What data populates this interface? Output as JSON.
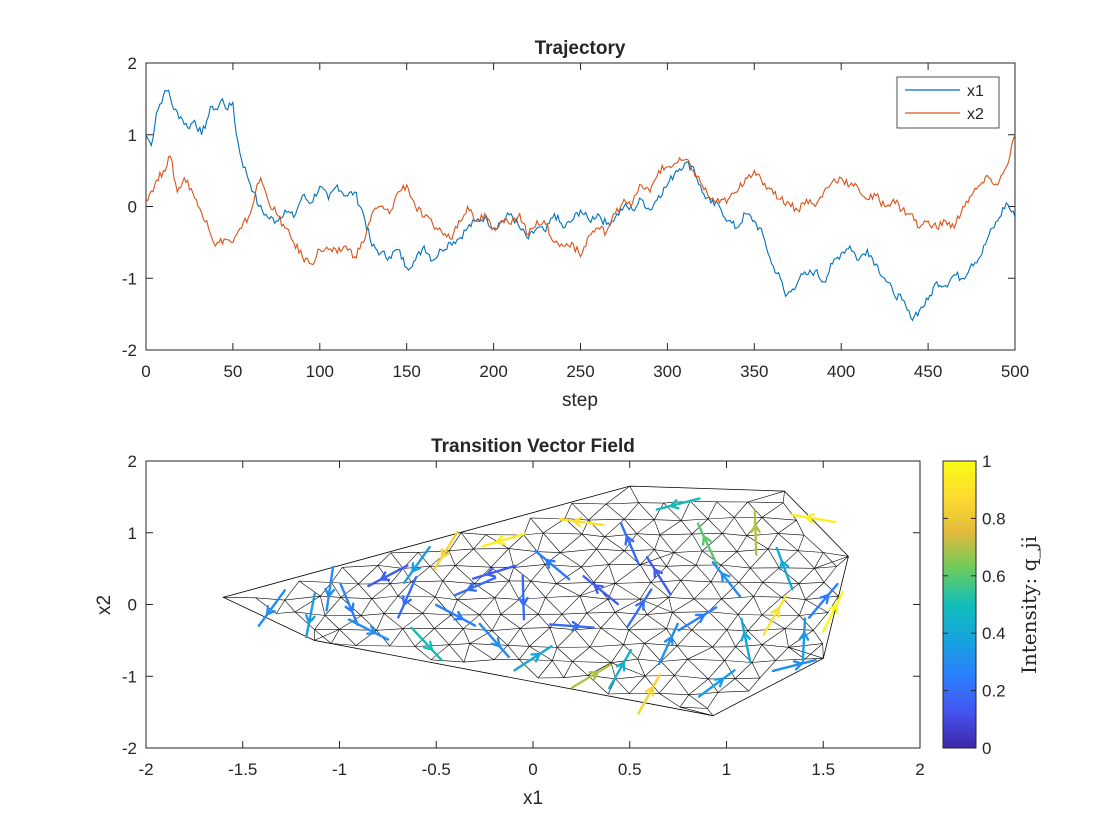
{
  "chart_data": [
    {
      "type": "line",
      "title": "Trajectory",
      "xlabel": "step",
      "ylabel": "",
      "xlim": [
        0,
        500
      ],
      "ylim": [
        -2,
        2
      ],
      "xticks": [
        0,
        50,
        100,
        150,
        200,
        250,
        300,
        350,
        400,
        450,
        500
      ],
      "yticks": [
        -2,
        -1,
        0,
        1,
        2
      ],
      "legend_position": "top-right",
      "grid": false,
      "series": [
        {
          "name": "x1",
          "color": "#0072BD",
          "points": [
            [
              0,
              1.0
            ],
            [
              3,
              0.85
            ],
            [
              6,
              1.3
            ],
            [
              10,
              1.55
            ],
            [
              13,
              1.62
            ],
            [
              16,
              1.35
            ],
            [
              20,
              1.25
            ],
            [
              24,
              1.1
            ],
            [
              28,
              1.2
            ],
            [
              32,
              1.0
            ],
            [
              35,
              1.2
            ],
            [
              38,
              1.4
            ],
            [
              41,
              1.35
            ],
            [
              44,
              1.5
            ],
            [
              47,
              1.35
            ],
            [
              50,
              1.45
            ],
            [
              52,
              1.0
            ],
            [
              55,
              0.65
            ],
            [
              58,
              0.45
            ],
            [
              62,
              0.2
            ],
            [
              65,
              0.0
            ],
            [
              70,
              -0.15
            ],
            [
              75,
              -0.2
            ],
            [
              80,
              -0.05
            ],
            [
              85,
              -0.15
            ],
            [
              90,
              0.15
            ],
            [
              95,
              0.05
            ],
            [
              100,
              0.28
            ],
            [
              105,
              0.1
            ],
            [
              110,
              0.3
            ],
            [
              115,
              0.15
            ],
            [
              120,
              0.2
            ],
            [
              125,
              -0.1
            ],
            [
              130,
              -0.55
            ],
            [
              135,
              -0.65
            ],
            [
              140,
              -0.7
            ],
            [
              145,
              -0.6
            ],
            [
              150,
              -0.85
            ],
            [
              155,
              -0.75
            ],
            [
              160,
              -0.55
            ],
            [
              165,
              -0.75
            ],
            [
              170,
              -0.6
            ],
            [
              175,
              -0.5
            ],
            [
              180,
              -0.45
            ],
            [
              185,
              -0.3
            ],
            [
              190,
              -0.2
            ],
            [
              195,
              -0.15
            ],
            [
              200,
              -0.3
            ],
            [
              205,
              -0.2
            ],
            [
              210,
              -0.1
            ],
            [
              215,
              -0.3
            ],
            [
              220,
              -0.45
            ],
            [
              225,
              -0.3
            ],
            [
              230,
              -0.35
            ],
            [
              235,
              -0.1
            ],
            [
              240,
              -0.3
            ],
            [
              245,
              -0.2
            ],
            [
              250,
              -0.05
            ],
            [
              255,
              -0.2
            ],
            [
              260,
              -0.1
            ],
            [
              265,
              -0.25
            ],
            [
              270,
              -0.15
            ],
            [
              275,
              0.0
            ],
            [
              280,
              -0.05
            ],
            [
              285,
              0.1
            ],
            [
              290,
              -0.05
            ],
            [
              295,
              0.15
            ],
            [
              300,
              0.3
            ],
            [
              305,
              0.5
            ],
            [
              310,
              0.6
            ],
            [
              315,
              0.55
            ],
            [
              320,
              0.2
            ],
            [
              325,
              0.05
            ],
            [
              330,
              0.0
            ],
            [
              335,
              -0.2
            ],
            [
              340,
              -0.3
            ],
            [
              345,
              -0.1
            ],
            [
              350,
              -0.2
            ],
            [
              355,
              -0.4
            ],
            [
              360,
              -0.8
            ],
            [
              365,
              -1.0
            ],
            [
              368,
              -1.25
            ],
            [
              372,
              -1.15
            ],
            [
              376,
              -1.0
            ],
            [
              380,
              -0.95
            ],
            [
              385,
              -0.9
            ],
            [
              390,
              -1.05
            ],
            [
              395,
              -0.8
            ],
            [
              400,
              -0.65
            ],
            [
              405,
              -0.55
            ],
            [
              410,
              -0.75
            ],
            [
              415,
              -0.6
            ],
            [
              420,
              -0.8
            ],
            [
              425,
              -1.0
            ],
            [
              430,
              -1.2
            ],
            [
              435,
              -1.3
            ],
            [
              440,
              -1.55
            ],
            [
              445,
              -1.45
            ],
            [
              450,
              -1.3
            ],
            [
              455,
              -1.05
            ],
            [
              460,
              -1.1
            ],
            [
              465,
              -0.95
            ],
            [
              470,
              -1.0
            ],
            [
              475,
              -0.8
            ],
            [
              480,
              -0.7
            ],
            [
              485,
              -0.4
            ],
            [
              490,
              -0.2
            ],
            [
              495,
              0.05
            ],
            [
              500,
              -0.15
            ]
          ]
        },
        {
          "name": "x2",
          "color": "#D95319",
          "points": [
            [
              0,
              0.1
            ],
            [
              5,
              0.3
            ],
            [
              10,
              0.5
            ],
            [
              14,
              0.7
            ],
            [
              18,
              0.2
            ],
            [
              22,
              0.4
            ],
            [
              26,
              0.25
            ],
            [
              30,
              0.0
            ],
            [
              35,
              -0.2
            ],
            [
              40,
              -0.55
            ],
            [
              45,
              -0.45
            ],
            [
              50,
              -0.5
            ],
            [
              55,
              -0.3
            ],
            [
              60,
              -0.1
            ],
            [
              63,
              0.2
            ],
            [
              66,
              0.4
            ],
            [
              70,
              0.1
            ],
            [
              75,
              -0.1
            ],
            [
              80,
              -0.3
            ],
            [
              85,
              -0.5
            ],
            [
              90,
              -0.7
            ],
            [
              95,
              -0.8
            ],
            [
              100,
              -0.6
            ],
            [
              105,
              -0.6
            ],
            [
              110,
              -0.65
            ],
            [
              115,
              -0.55
            ],
            [
              120,
              -0.7
            ],
            [
              125,
              -0.5
            ],
            [
              130,
              -0.1
            ],
            [
              135,
              0.0
            ],
            [
              140,
              -0.1
            ],
            [
              145,
              0.2
            ],
            [
              150,
              0.3
            ],
            [
              155,
              0.0
            ],
            [
              160,
              -0.15
            ],
            [
              165,
              -0.25
            ],
            [
              170,
              -0.35
            ],
            [
              175,
              -0.45
            ],
            [
              180,
              -0.2
            ],
            [
              185,
              0.0
            ],
            [
              190,
              -0.2
            ],
            [
              195,
              -0.1
            ],
            [
              200,
              -0.3
            ],
            [
              205,
              -0.2
            ],
            [
              210,
              -0.25
            ],
            [
              215,
              -0.1
            ],
            [
              220,
              -0.4
            ],
            [
              225,
              -0.2
            ],
            [
              230,
              -0.25
            ],
            [
              235,
              -0.5
            ],
            [
              240,
              -0.55
            ],
            [
              245,
              -0.5
            ],
            [
              250,
              -0.7
            ],
            [
              255,
              -0.4
            ],
            [
              260,
              -0.3
            ],
            [
              265,
              -0.35
            ],
            [
              270,
              -0.1
            ],
            [
              275,
              0.1
            ],
            [
              280,
              0.05
            ],
            [
              285,
              0.3
            ],
            [
              290,
              0.2
            ],
            [
              295,
              0.5
            ],
            [
              300,
              0.55
            ],
            [
              305,
              0.6
            ],
            [
              310,
              0.65
            ],
            [
              315,
              0.5
            ],
            [
              320,
              0.3
            ],
            [
              325,
              0.1
            ],
            [
              330,
              0.05
            ],
            [
              335,
              0.1
            ],
            [
              340,
              0.2
            ],
            [
              345,
              0.4
            ],
            [
              350,
              0.5
            ],
            [
              355,
              0.3
            ],
            [
              360,
              0.25
            ],
            [
              365,
              0.1
            ],
            [
              370,
              0.05
            ],
            [
              375,
              -0.05
            ],
            [
              380,
              0.1
            ],
            [
              385,
              0.0
            ],
            [
              390,
              0.2
            ],
            [
              395,
              0.35
            ],
            [
              400,
              0.4
            ],
            [
              405,
              0.3
            ],
            [
              410,
              0.25
            ],
            [
              415,
              0.1
            ],
            [
              420,
              0.15
            ],
            [
              425,
              0.0
            ],
            [
              430,
              0.1
            ],
            [
              435,
              -0.05
            ],
            [
              440,
              -0.1
            ],
            [
              445,
              -0.3
            ],
            [
              450,
              -0.2
            ],
            [
              455,
              -0.3
            ],
            [
              460,
              -0.2
            ],
            [
              465,
              -0.3
            ],
            [
              470,
              0.0
            ],
            [
              475,
              0.15
            ],
            [
              480,
              0.3
            ],
            [
              485,
              0.4
            ],
            [
              490,
              0.3
            ],
            [
              495,
              0.55
            ],
            [
              500,
              1.0
            ]
          ]
        }
      ]
    },
    {
      "type": "vector-field",
      "title": "Transition Vector Field",
      "xlabel": "x1",
      "ylabel": "x2",
      "xlim": [
        -2,
        2
      ],
      "ylim": [
        -2,
        2
      ],
      "xticks": [
        -2,
        -1.5,
        -1,
        -0.5,
        0,
        0.5,
        1,
        1.5,
        2
      ],
      "yticks": [
        -2,
        -1,
        0,
        1,
        2
      ],
      "colorbar": {
        "label": "Intensity: q_ji",
        "ticks": [
          0,
          0.2,
          0.4,
          0.6,
          0.8,
          1
        ],
        "range": [
          0,
          1
        ],
        "colormap": [
          "#3E26A8",
          "#4454F1",
          "#2B7EFE",
          "#16A3DE",
          "#12BEB9",
          "#6BCC5D",
          "#E1B93A",
          "#FDDC2F",
          "#F9FB15"
        ]
      },
      "hull": [
        [
          -1.6,
          0.1
        ],
        [
          0.5,
          1.65
        ],
        [
          1.3,
          1.58
        ],
        [
          1.63,
          0.67
        ],
        [
          1.5,
          -0.75
        ],
        [
          0.93,
          -1.55
        ],
        [
          -1.13,
          -0.5
        ]
      ],
      "arrows": [
        [
          -1.35,
          -0.05,
          0.3
        ],
        [
          -1.15,
          -0.15,
          0.35
        ],
        [
          -1.05,
          0.22,
          0.3
        ],
        [
          -0.95,
          0.0,
          0.25
        ],
        [
          -0.85,
          -0.35,
          0.3
        ],
        [
          -0.75,
          0.4,
          0.15
        ],
        [
          -0.65,
          0.1,
          0.2
        ],
        [
          -0.55,
          -0.55,
          0.5
        ],
        [
          -0.45,
          0.75,
          0.85
        ],
        [
          -0.4,
          -0.15,
          0.25
        ],
        [
          -0.3,
          0.25,
          0.2
        ],
        [
          -0.2,
          -0.5,
          0.3
        ],
        [
          -0.15,
          0.9,
          0.95
        ],
        [
          -0.05,
          0.1,
          0.2
        ],
        [
          0.0,
          -0.75,
          0.4
        ],
        [
          0.1,
          0.55,
          0.25
        ],
        [
          0.2,
          -0.3,
          0.2
        ],
        [
          0.25,
          1.15,
          0.9
        ],
        [
          0.35,
          0.2,
          0.15
        ],
        [
          0.45,
          -0.9,
          0.45
        ],
        [
          0.5,
          0.85,
          0.2
        ],
        [
          0.55,
          -0.05,
          0.2
        ],
        [
          0.65,
          0.4,
          0.15
        ],
        [
          0.7,
          -0.55,
          0.3
        ],
        [
          0.75,
          1.4,
          0.5
        ],
        [
          0.85,
          -0.2,
          0.25
        ],
        [
          0.9,
          0.85,
          0.6
        ],
        [
          0.95,
          -1.1,
          0.35
        ],
        [
          1.0,
          0.35,
          0.3
        ],
        [
          1.1,
          -0.5,
          0.4
        ],
        [
          1.15,
          1.0,
          0.7
        ],
        [
          1.25,
          -0.15,
          0.9
        ],
        [
          1.3,
          0.5,
          0.4
        ],
        [
          1.4,
          -0.5,
          0.35
        ],
        [
          1.45,
          1.2,
          0.95
        ],
        [
          1.5,
          0.05,
          0.25
        ],
        [
          1.55,
          -0.1,
          1.0
        ],
        [
          -0.6,
          0.55,
          0.35
        ],
        [
          0.3,
          -1.0,
          0.7
        ],
        [
          0.6,
          -1.25,
          0.85
        ],
        [
          1.35,
          -0.85,
          0.3
        ],
        [
          -0.2,
          0.45,
          0.15
        ]
      ]
    }
  ]
}
